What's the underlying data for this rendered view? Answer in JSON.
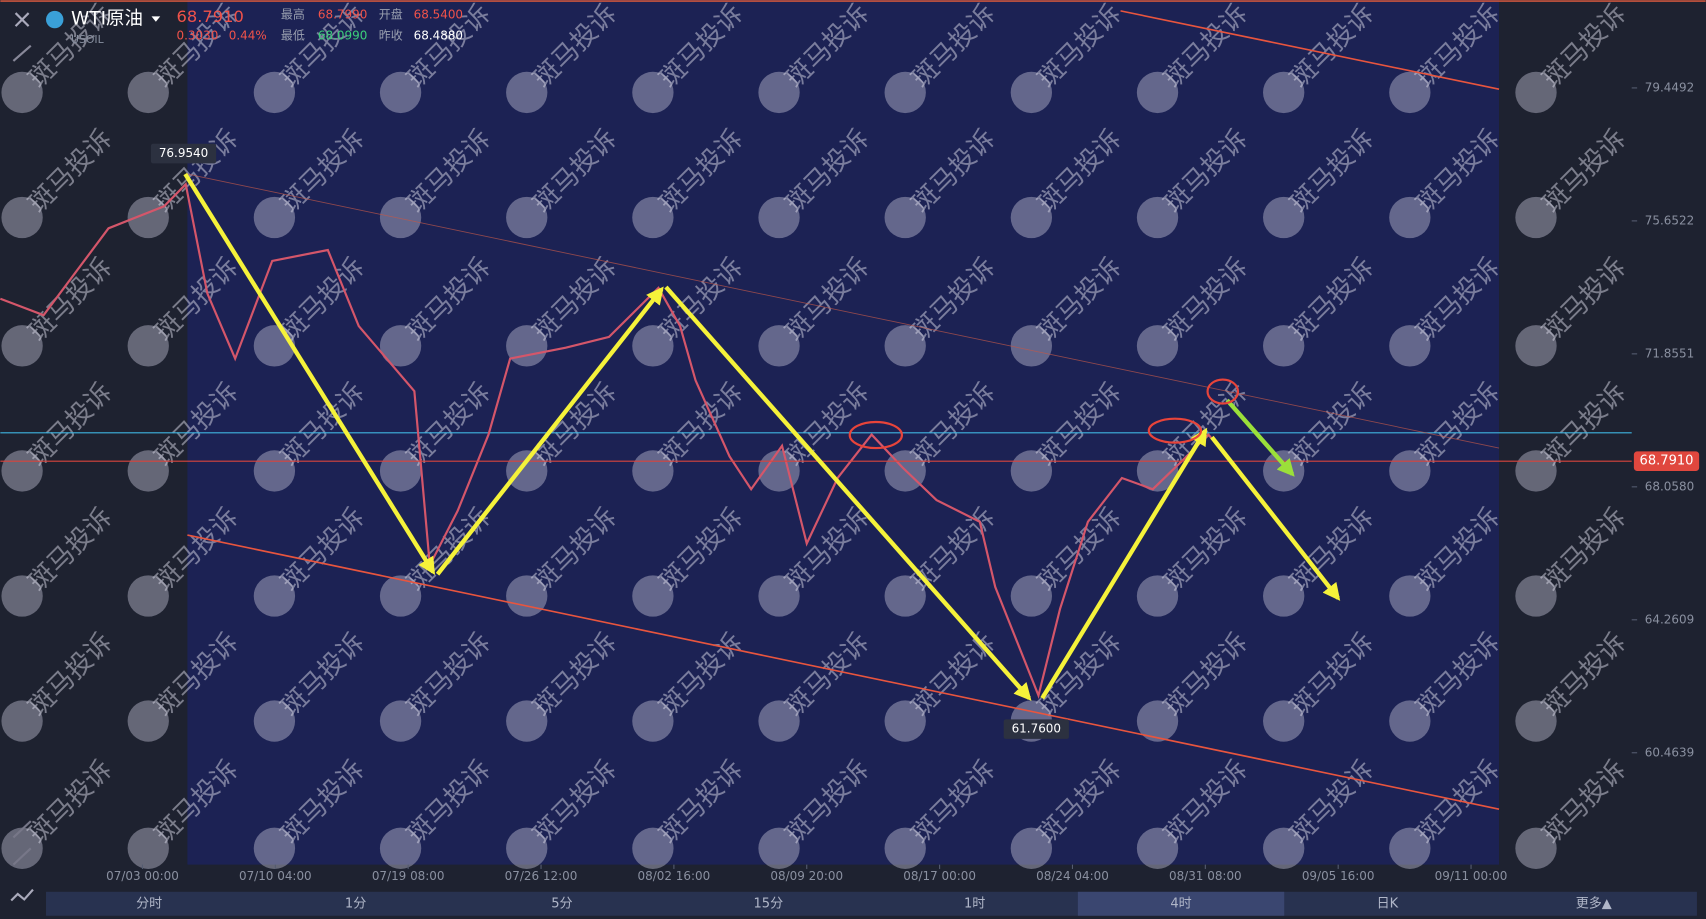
{
  "header": {
    "symbol": "WTI原油",
    "code": "USOIL",
    "last": "68.7910",
    "change": "0.3030",
    "change_pct": "0.44%",
    "high_label": "最高",
    "high": "68.7990",
    "open_label": "开盘",
    "open": "68.5400",
    "low_label": "最低",
    "low": "68.0990",
    "prev_close_label": "昨收",
    "prev_close": "68.4880"
  },
  "chart_data": {
    "type": "line",
    "color": "#d4566a",
    "x": [
      -46,
      -32,
      -11,
      7,
      14,
      21,
      30,
      42,
      60,
      70,
      88,
      93,
      102,
      112,
      119,
      137,
      151,
      167,
      174,
      179,
      190,
      197,
      207,
      215,
      225,
      236,
      246,
      257,
      271,
      276,
      283,
      290,
      297,
      306,
      317,
      327,
      338,
      345,
      348,
      352
    ],
    "values": [
      73.43,
      72.96,
      75.44,
      76.07,
      76.7,
      73.58,
      71.72,
      74.51,
      74.82,
      72.65,
      70.79,
      65.82,
      67.37,
      69.55,
      71.72,
      72.03,
      72.34,
      73.74,
      72.65,
      71.1,
      68.93,
      67.99,
      69.23,
      66.44,
      68.31,
      69.55,
      68.61,
      67.68,
      67.06,
      65.2,
      63.65,
      62.1,
      64.58,
      67.06,
      68.31,
      67.99,
      68.93,
      69.55,
      69.23,
      68.79
    ],
    "xlim": [
      -46,
      482
    ],
    "xticks": [
      {
        "value": 0,
        "label": "07/03 00:00"
      },
      {
        "value": 43,
        "label": "07/10 04:00"
      },
      {
        "value": 86,
        "label": "07/19 08:00"
      },
      {
        "value": 129,
        "label": "07/26 12:00"
      },
      {
        "value": 172,
        "label": "08/02 16:00"
      },
      {
        "value": 215,
        "label": "08/09 20:00"
      },
      {
        "value": 258,
        "label": "08/17 00:00"
      },
      {
        "value": 301,
        "label": "08/24 04:00"
      },
      {
        "value": 344,
        "label": "08/31 08:00"
      },
      {
        "value": 387,
        "label": "09/05 16:00"
      },
      {
        "value": 430,
        "label": "09/11 00:00"
      }
    ],
    "ylim": [
      57.27,
      81.96
    ],
    "yticks": [
      79.4492,
      75.6522,
      71.8551,
      {
        "value": 68.058,
        "label": "68.0580"
      },
      64.2609,
      60.4639
    ],
    "max_marker": {
      "value": 76.954,
      "label": "76.9540"
    },
    "min_marker": {
      "value": 61.76,
      "label": "61.7600"
    },
    "last_price": {
      "value": 68.791,
      "label": "68.7910"
    }
  },
  "watermark": "斑马投诉",
  "tabs": [
    "分时",
    "1分",
    "5分",
    "15分",
    "1时",
    "4时",
    "日K",
    "更多▲"
  ],
  "active_tab": "4时"
}
